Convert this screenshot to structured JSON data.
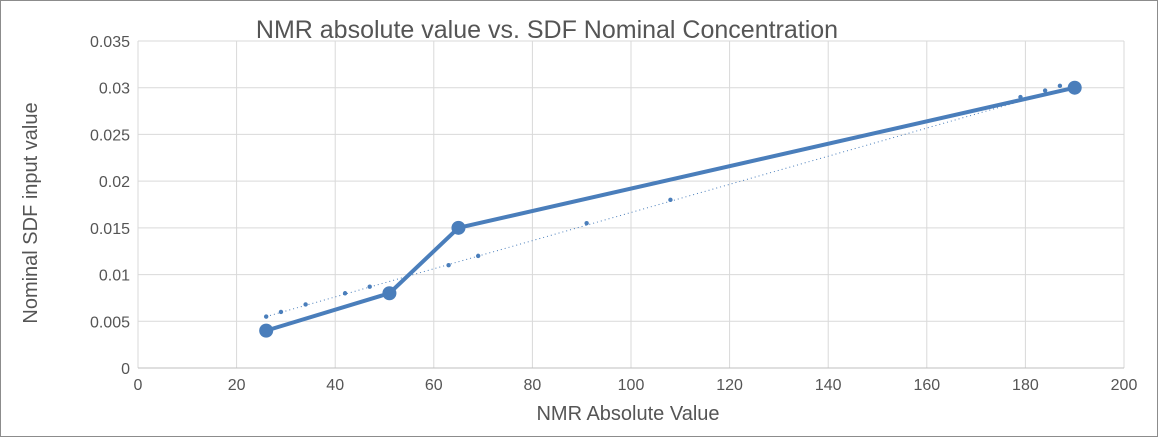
{
  "chart_data": {
    "type": "scatter",
    "title": "NMR absolute value vs. SDF Nominal Concentration",
    "xlabel": "NMR Absolute Value",
    "ylabel": "Nominal SDF input value",
    "xlim": [
      0,
      200
    ],
    "ylim": [
      0,
      0.035
    ],
    "x_ticks": [
      "0",
      "20",
      "40",
      "60",
      "80",
      "100",
      "120",
      "140",
      "160",
      "180",
      "200"
    ],
    "y_ticks": [
      "0",
      "0.005",
      "0.01",
      "0.015",
      "0.02",
      "0.025",
      "0.03",
      "0.035"
    ],
    "grid": true,
    "legend": "none",
    "color": "#4a7ebb",
    "series": [
      {
        "style": "line-with-markers",
        "points": [
          {
            "x": 26,
            "y": 0.004
          },
          {
            "x": 51,
            "y": 0.008
          },
          {
            "x": 65,
            "y": 0.015
          },
          {
            "x": 190,
            "y": 0.03
          }
        ]
      },
      {
        "style": "small-points",
        "points": [
          {
            "x": 26,
            "y": 0.0055
          },
          {
            "x": 29,
            "y": 0.006
          },
          {
            "x": 34,
            "y": 0.0068
          },
          {
            "x": 42,
            "y": 0.008
          },
          {
            "x": 47,
            "y": 0.0087
          },
          {
            "x": 63,
            "y": 0.011
          },
          {
            "x": 69,
            "y": 0.012
          },
          {
            "x": 91,
            "y": 0.0155
          },
          {
            "x": 108,
            "y": 0.018
          },
          {
            "x": 179,
            "y": 0.029
          },
          {
            "x": 184,
            "y": 0.0297
          },
          {
            "x": 187,
            "y": 0.0302
          }
        ]
      },
      {
        "style": "dotted-trendline",
        "points": [
          {
            "x": 26,
            "y": 0.0055
          },
          {
            "x": 190,
            "y": 0.0302
          }
        ]
      }
    ]
  }
}
